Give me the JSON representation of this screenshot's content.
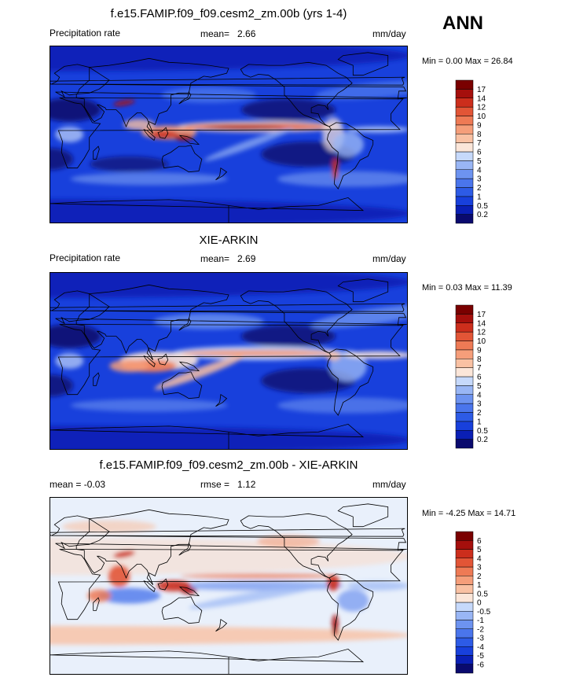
{
  "season": "ANN",
  "units": "mm/day",
  "panels": [
    {
      "title": "f.e15.FAMIP.f09_f09.cesm2_zm.00b (yrs 1-4)",
      "left_label": "Precipitation rate",
      "stat_label": "mean=",
      "stat_value": "2.66",
      "units": "mm/day",
      "minmax": "Min =   0.00 Max =  26.84"
    },
    {
      "title": "XIE-ARKIN",
      "left_label": "Precipitation rate",
      "stat_label": "mean=",
      "stat_value": "2.69",
      "units": "mm/day",
      "minmax": "Min =   0.03 Max =  11.39"
    },
    {
      "title": "f.e15.FAMIP.f09_f09.cesm2_zm.00b - XIE-ARKIN",
      "left_label": "mean =  -0.03",
      "stat_label": "rmse =",
      "stat_value": "1.12",
      "units": "mm/day",
      "minmax": "Min =  -4.25 Max =  14.71"
    }
  ],
  "chart_data": [
    {
      "type": "heatmap",
      "title": "f.e15.FAMIP.f09_f09.cesm2_zm.00b (yrs 1-4)",
      "field": "Precipitation rate",
      "units": "mm/day",
      "mean": 2.66,
      "min": 0.0,
      "max": 26.84,
      "colorbar_levels": [
        "0.2",
        "0.5",
        "1",
        "2",
        "3",
        "4",
        "5",
        "6",
        "7",
        "8",
        "9",
        "10",
        "12",
        "14",
        "17"
      ],
      "colorbar_colors": [
        "#0a0a6e",
        "#0a1fb5",
        "#1840dc",
        "#2d5be6",
        "#4a75ec",
        "#6d93f0",
        "#99b6f5",
        "#c6d9fb",
        "#fbe6d9",
        "#f9c1a3",
        "#f59e7a",
        "#ee7a55",
        "#e25536",
        "#cc2e1c",
        "#a50f0c",
        "#7a0000"
      ]
    },
    {
      "type": "heatmap",
      "title": "XIE-ARKIN",
      "field": "Precipitation rate",
      "units": "mm/day",
      "mean": 2.69,
      "min": 0.03,
      "max": 11.39,
      "colorbar_levels": [
        "0.2",
        "0.5",
        "1",
        "2",
        "3",
        "4",
        "5",
        "6",
        "7",
        "8",
        "9",
        "10",
        "12",
        "14",
        "17"
      ],
      "colorbar_colors": [
        "#0a0a6e",
        "#0a1fb5",
        "#1840dc",
        "#2d5be6",
        "#4a75ec",
        "#6d93f0",
        "#99b6f5",
        "#c6d9fb",
        "#fbe6d9",
        "#f9c1a3",
        "#f59e7a",
        "#ee7a55",
        "#e25536",
        "#cc2e1c",
        "#a50f0c",
        "#7a0000"
      ]
    },
    {
      "type": "heatmap",
      "title": "f.e15.FAMIP.f09_f09.cesm2_zm.00b - XIE-ARKIN",
      "units": "mm/day",
      "mean": -0.03,
      "rmse": 1.12,
      "min": -4.25,
      "max": 14.71,
      "colorbar_levels": [
        "-6",
        "-5",
        "-4",
        "-3",
        "-2",
        "-1",
        "-0.5",
        "0",
        "0.5",
        "1",
        "2",
        "3",
        "4",
        "5",
        "6"
      ],
      "colorbar_colors": [
        "#0a0a6e",
        "#0a1fb5",
        "#1840dc",
        "#2d5be6",
        "#4a75ec",
        "#6d93f0",
        "#99b6f5",
        "#c6d9fb",
        "#fbe6d9",
        "#f9c1a3",
        "#f59e7a",
        "#ee7a55",
        "#e25536",
        "#cc2e1c",
        "#a50f0c",
        "#7a0000"
      ]
    }
  ]
}
